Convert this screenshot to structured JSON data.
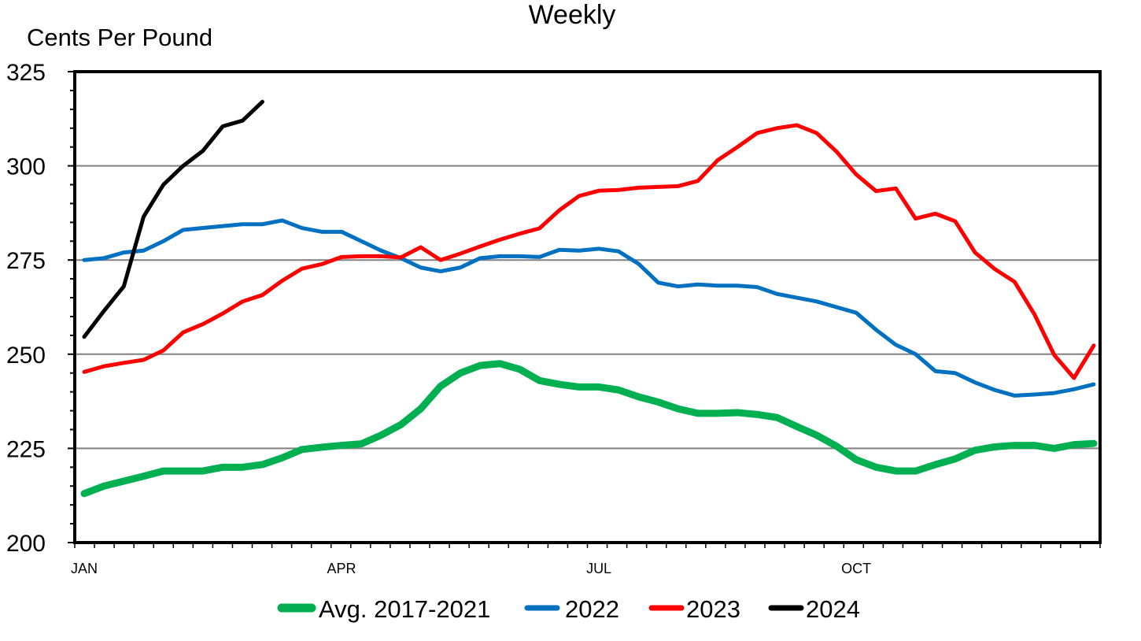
{
  "chart_data": {
    "type": "line",
    "title": "Weekly",
    "ylabel": "Cents Per Pound",
    "xlabel": "",
    "ylim": [
      200,
      325
    ],
    "yticks": [
      200,
      225,
      250,
      275,
      300,
      325
    ],
    "ytick_labels": [
      "200",
      "225",
      "250",
      "275",
      "300",
      "325"
    ],
    "xtick_labels": [
      {
        "label": "JAN",
        "week": 1
      },
      {
        "label": "APR",
        "week": 14
      },
      {
        "label": "JUL",
        "week": 27
      },
      {
        "label": "OCT",
        "week": 40
      }
    ],
    "weeks": 52,
    "grid": "horizontal",
    "legend": "bottom",
    "series": [
      {
        "name": "Avg. 2017-2021",
        "color": "#00B050",
        "values": [
          213,
          215,
          216.3,
          217.6,
          219,
          219,
          219,
          220,
          220,
          220.7,
          222.5,
          224.7,
          225.3,
          225.8,
          226.2,
          228.5,
          231.3,
          235.5,
          241.5,
          245,
          247,
          247.5,
          246,
          243,
          242,
          241.3,
          241.3,
          240.5,
          238.7,
          237.3,
          235.5,
          234.3,
          234.3,
          234.5,
          234,
          233.2,
          230.8,
          228.5,
          225.6,
          222,
          220,
          219,
          219,
          220.7,
          222.2,
          224.5,
          225.4,
          225.8,
          225.8,
          225,
          226,
          226.3
        ]
      },
      {
        "name": "2022",
        "color": "#0070C0",
        "values": [
          275,
          275.5,
          277,
          277.5,
          280,
          283,
          283.5,
          284,
          284.5,
          284.5,
          285.5,
          283.5,
          282.5,
          282.5,
          280,
          277.5,
          275.5,
          273,
          272,
          273,
          275.5,
          276,
          276,
          275.8,
          277.7,
          277.5,
          278,
          277.3,
          274,
          269,
          268,
          268.5,
          268.2,
          268.2,
          267.8,
          266,
          265,
          264,
          262.5,
          261,
          256.5,
          252.5,
          250,
          245.5,
          245,
          242.5,
          240.5,
          239,
          239.3,
          239.7,
          240.7,
          242
        ]
      },
      {
        "name": "2023",
        "color": "#FF0000",
        "values": [
          245.3,
          246.8,
          247.7,
          248.5,
          251,
          255.8,
          258,
          260.8,
          264,
          265.7,
          269.5,
          272.7,
          273.9,
          275.8,
          276,
          276,
          275.7,
          278.4,
          275,
          276.7,
          278.6,
          280.4,
          282,
          283.4,
          288.2,
          292,
          293.4,
          293.6,
          294.2,
          294.4,
          294.6,
          296,
          301.5,
          305,
          308.7,
          310,
          310.8,
          308.7,
          303.8,
          297.7,
          293.3,
          294,
          286,
          287.3,
          285.3,
          277,
          272.6,
          269.2,
          260.6,
          249.8,
          243.7,
          252.3
        ]
      },
      {
        "name": "2024",
        "color": "#000000",
        "values": [
          254.6,
          261.5,
          268,
          286.5,
          295,
          300,
          304,
          310.5,
          312,
          317
        ]
      }
    ]
  }
}
